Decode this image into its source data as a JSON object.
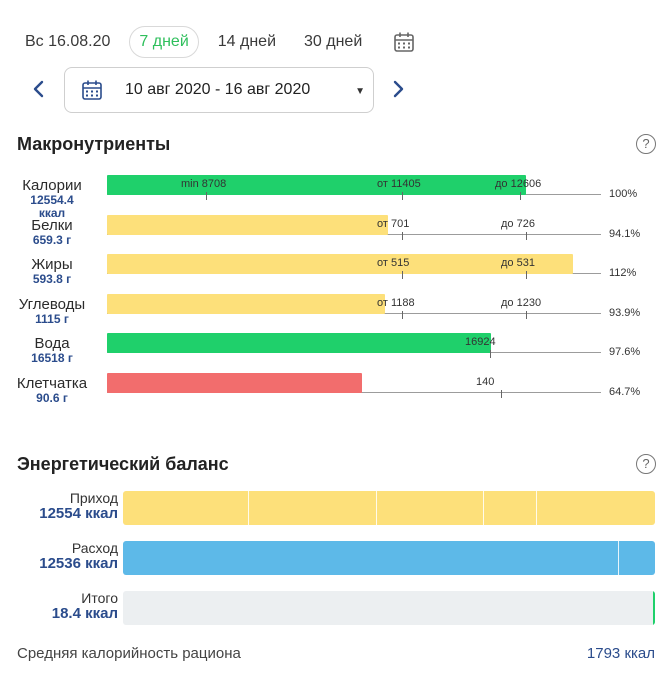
{
  "tabs": {
    "today": "Вс 16.08.20",
    "week": "7 дней",
    "two_weeks": "14 дней",
    "month": "30 дней",
    "active": "week"
  },
  "range": {
    "label": "10 авг 2020 - 16 авг 2020"
  },
  "macros": {
    "title": "Макронутриенты",
    "help": "?",
    "items": [
      {
        "name": "Калории",
        "amount": "12554.4\nккал",
        "percent": "100%",
        "color": "#1fd06b",
        "fill": 0.848,
        "marks": [
          {
            "label": "min 8708",
            "pos": 0.2
          },
          {
            "label": "от 11405",
            "pos": 0.597
          },
          {
            "label": "до 12606",
            "pos": 0.837
          }
        ]
      },
      {
        "name": "Белки",
        "amount": "659.3 г",
        "percent": "94.1%",
        "color": "#fde07a",
        "fill": 0.568,
        "marks": [
          {
            "label": "от 701",
            "pos": 0.598
          },
          {
            "label": "до 726",
            "pos": 0.849
          }
        ]
      },
      {
        "name": "Жиры",
        "amount": "593.8 г",
        "percent": "112%",
        "color": "#fde07a",
        "fill": 0.944,
        "marks": [
          {
            "label": "от 515",
            "pos": 0.598
          },
          {
            "label": "до 531",
            "pos": 0.849
          }
        ]
      },
      {
        "name": "Углеводы",
        "amount": "1115 г",
        "percent": "93.9%",
        "color": "#fde07a",
        "fill": 0.562,
        "marks": [
          {
            "label": "от 1188",
            "pos": 0.598
          },
          {
            "label": "до 1230",
            "pos": 0.849
          }
        ]
      },
      {
        "name": "Вода",
        "amount": "16518 г",
        "percent": "97.6%",
        "color": "#1fd06b",
        "fill": 0.777,
        "marks": [
          {
            "label": "16924",
            "pos": 0.775
          }
        ]
      },
      {
        "name": "Клетчатка",
        "amount": "90.6 г",
        "percent": "64.7%",
        "color": "#f26d6d",
        "fill": 0.516,
        "marks": [
          {
            "label": "140",
            "pos": 0.798
          }
        ]
      }
    ]
  },
  "energy": {
    "title": "Энергетический баланс",
    "help": "?",
    "rows": [
      {
        "label": "Приход",
        "value": "12554 ккал",
        "color": "#fde07a",
        "fill": 1.0,
        "dividers": [
          0.235,
          0.475,
          0.676,
          0.777
        ]
      },
      {
        "label": "Расход",
        "value": "12536 ккал",
        "color": "#5db9e8",
        "fill": 1.0,
        "dividers": [
          0.93
        ]
      },
      {
        "label": "Итого",
        "value": "18.4 ккал",
        "color": "#eceff1",
        "fill": 1.0,
        "dividers": []
      }
    ]
  },
  "footer": {
    "label": "Средняя калорийность рациона",
    "value": "1793 ккал"
  }
}
